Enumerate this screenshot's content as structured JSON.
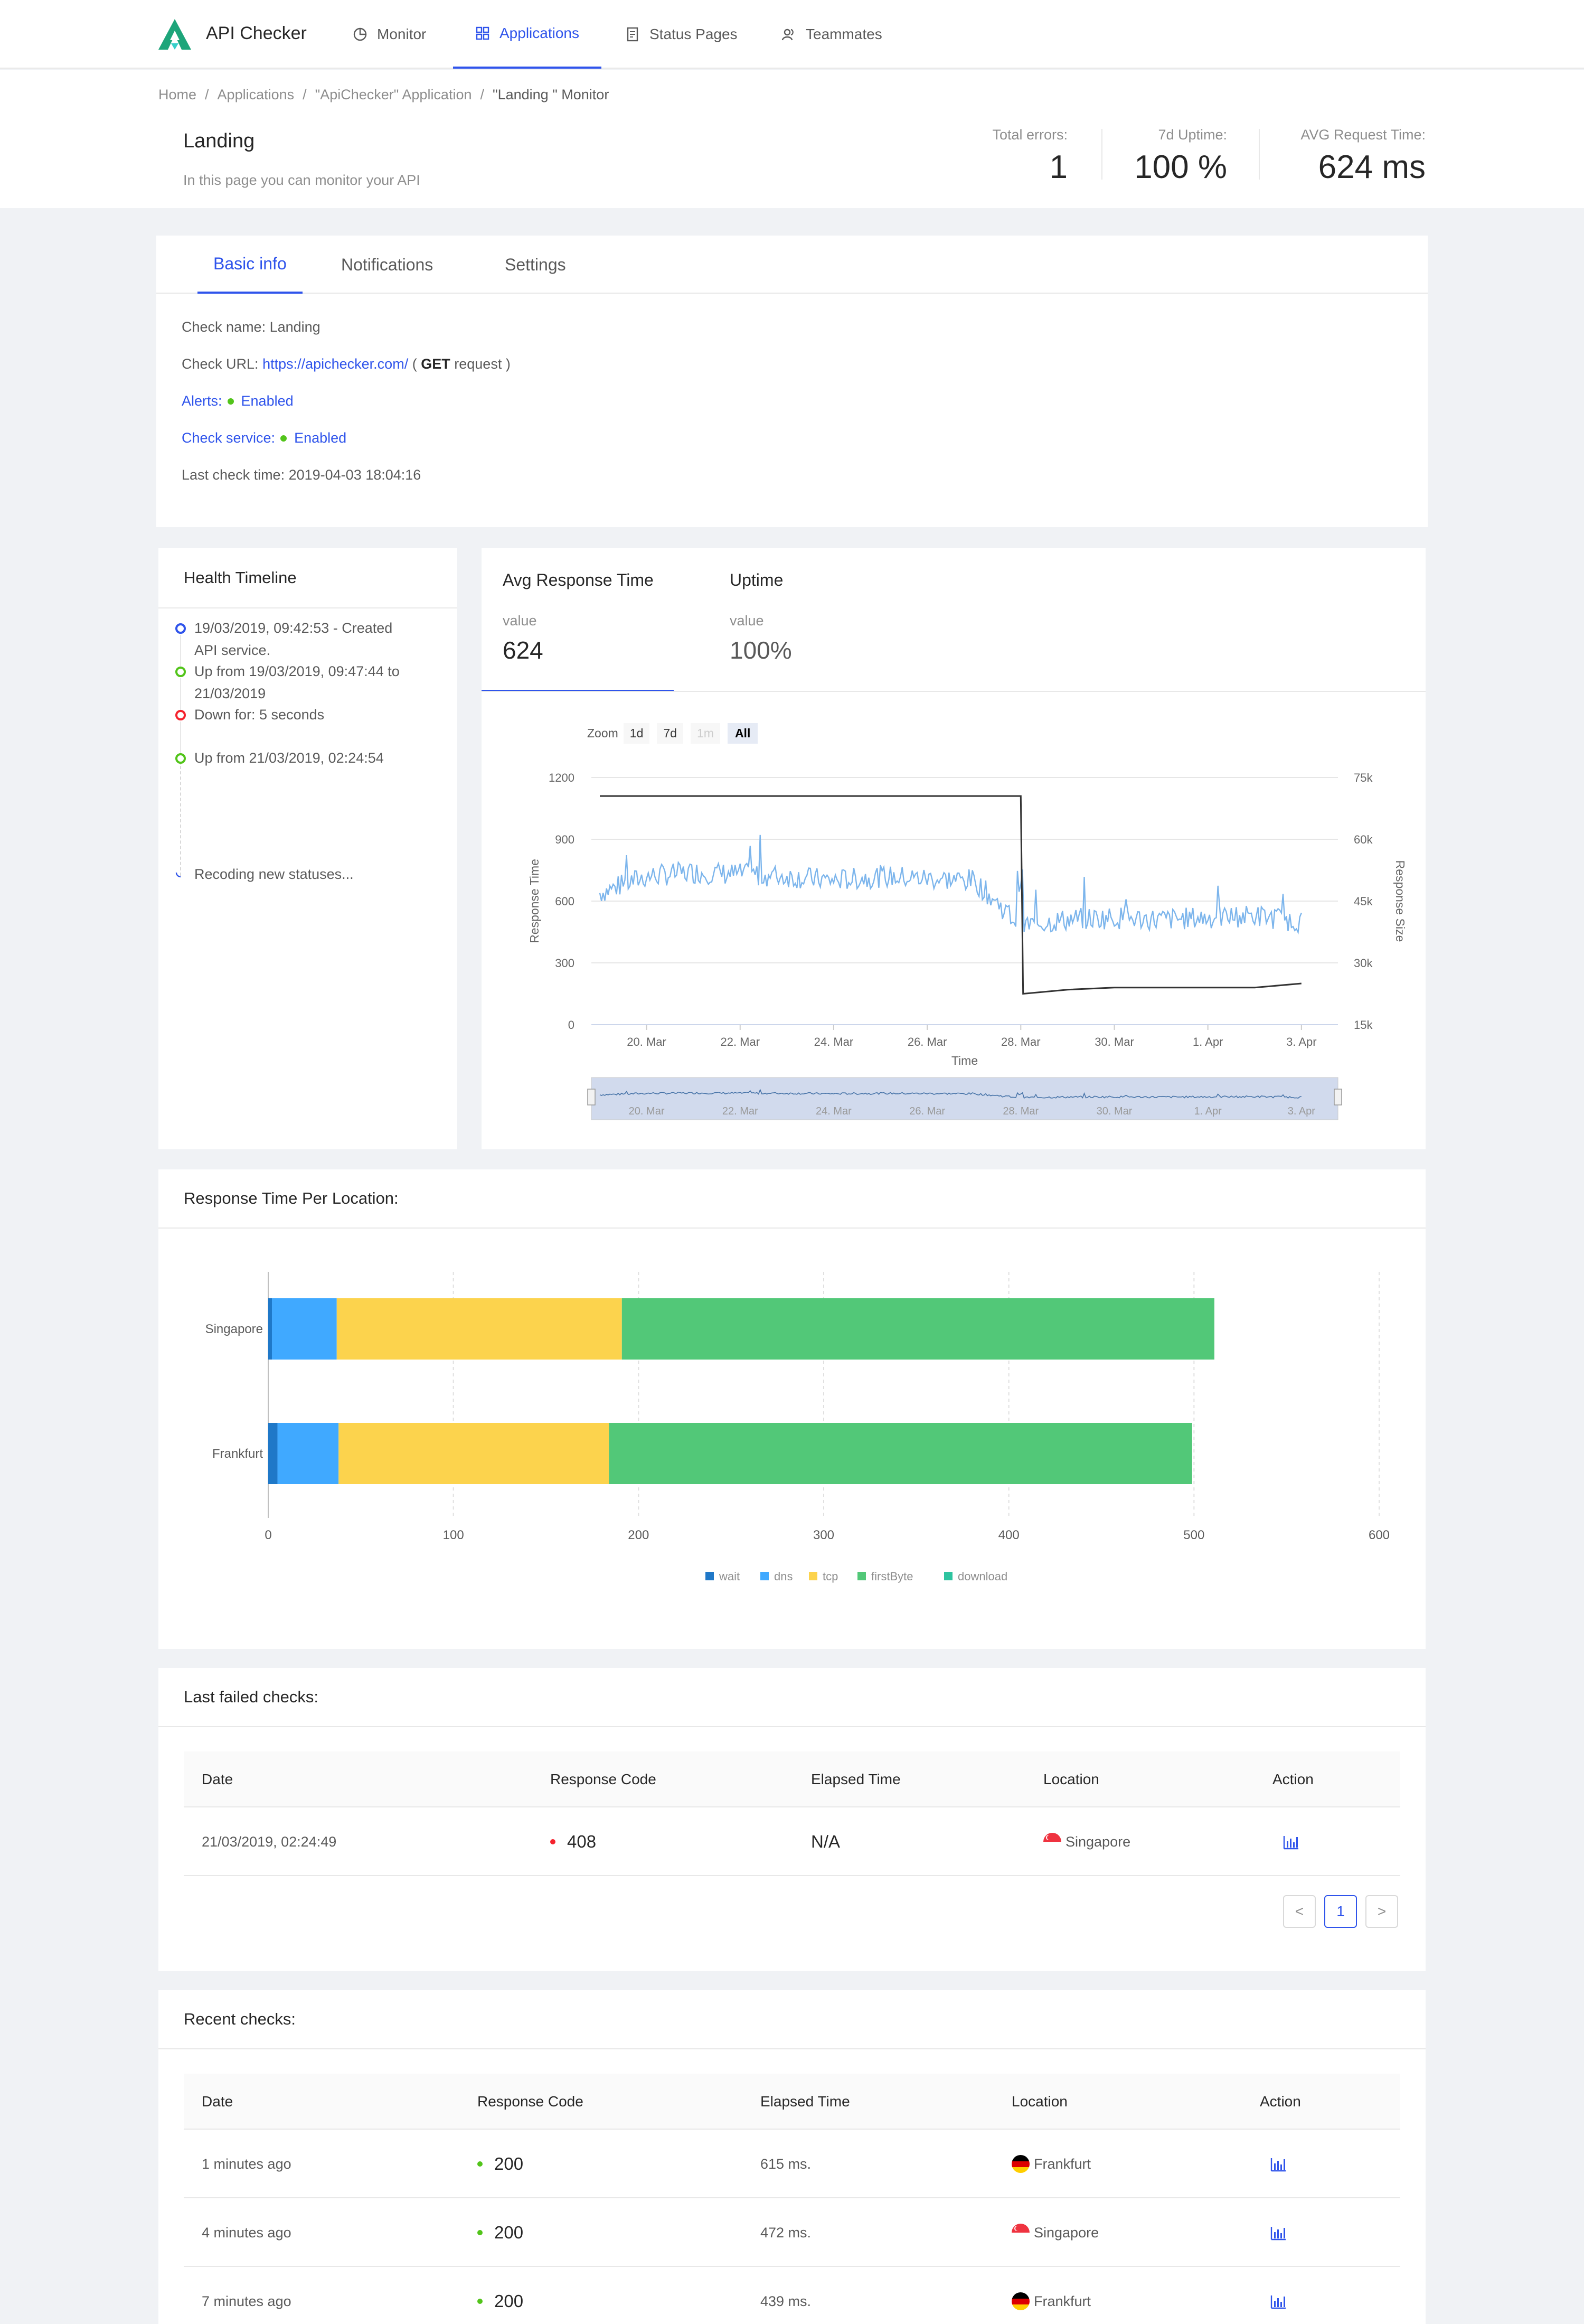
{
  "nav": {
    "brand": "API Checker",
    "items": [
      {
        "label": "Monitor",
        "icon": "pie-chart-icon"
      },
      {
        "label": "Applications",
        "icon": "appstore-icon"
      },
      {
        "label": "Status Pages",
        "icon": "file-text-icon"
      },
      {
        "label": "Teammates",
        "icon": "team-icon"
      }
    ],
    "active": "Applications"
  },
  "breadcrumb": [
    "Home",
    "Applications",
    "\"ApiChecker\" Application",
    "\"Landing \" Monitor"
  ],
  "header": {
    "title": "Landing",
    "description": "In this page you can monitor your API",
    "stats": [
      {
        "label": "Total errors:",
        "value": "1"
      },
      {
        "label": "7d Uptime:",
        "value": "100 %"
      },
      {
        "label": "AVG Request Time:",
        "value": "624 ms"
      }
    ]
  },
  "info": {
    "tabs": [
      "Basic info",
      "Notifications",
      "Settings"
    ],
    "check_name_label": "Check name:",
    "check_name": "Landing",
    "check_url_label": "Check URL:",
    "check_url": "https://apichecker.com/",
    "check_url_open": "(",
    "method": "GET",
    "method_suffix": "request )",
    "alerts_label": "Alerts:",
    "alerts_value": "Enabled",
    "service_label": "Check service:",
    "service_value": "Enabled",
    "last_check_label": "Last check time:",
    "last_check": "2019-04-03 18:04:16"
  },
  "timeline": {
    "title": "Health Timeline",
    "items": [
      {
        "text": "19/03/2019, 09:42:53 - Created API service.",
        "color": "#2f54eb"
      },
      {
        "text": "Up from 19/03/2019, 09:47:44 to 21/03/2019",
        "color": "#52c41a"
      },
      {
        "text": "Down for: 5 seconds",
        "color": "#f5222d"
      },
      {
        "text": "Up from 21/03/2019, 02:24:54",
        "color": "#52c41a"
      }
    ],
    "pending": "Recoding new statuses..."
  },
  "metrics": {
    "tabs": [
      {
        "title": "Avg Response Time",
        "sub": "value",
        "value": "624"
      },
      {
        "title": "Uptime",
        "sub": "value",
        "value": "100%"
      }
    ],
    "zoom_label": "Zoom",
    "zoom_buttons": [
      "1d",
      "7d",
      "1m",
      "All"
    ],
    "zoom_active": "All"
  },
  "location": {
    "title": "Response Time Per Location:"
  },
  "failed": {
    "title": "Last failed checks:",
    "columns": [
      "Date",
      "Response Code",
      "Elapsed Time",
      "Location",
      "Action"
    ],
    "rows": [
      {
        "date": "21/03/2019, 02:24:49",
        "code": "408",
        "elapsed": "N/A",
        "location": "Singapore"
      }
    ],
    "pager": {
      "prev": "<",
      "page": "1",
      "next": ">"
    }
  },
  "recent": {
    "title": "Recent checks:",
    "columns": [
      "Date",
      "Response Code",
      "Elapsed Time",
      "Location",
      "Action"
    ],
    "rows": [
      {
        "date": "1 minutes ago",
        "code": "200",
        "elapsed": "615 ms.",
        "location": "Frankfurt"
      },
      {
        "date": "4 minutes ago",
        "code": "200",
        "elapsed": "472 ms.",
        "location": "Singapore"
      },
      {
        "date": "7 minutes ago",
        "code": "200",
        "elapsed": "439 ms.",
        "location": "Frankfurt"
      }
    ]
  },
  "colors": {
    "primary": "#2f54eb",
    "success": "#52c41a",
    "error": "#f5222d",
    "wait": "#1f78c8",
    "dns": "#40a9ff",
    "tcp": "#fcd34d",
    "firstByte": "#52c878",
    "download": "#2ec4a0"
  },
  "chart_data": [
    {
      "type": "line",
      "title": "",
      "xlabel": "Time",
      "ylabel": "Response Time",
      "ylabel_right": "Response Size",
      "x_ticks": [
        "20. Mar",
        "22. Mar",
        "24. Mar",
        "26. Mar",
        "28. Mar",
        "30. Mar",
        "1. Apr",
        "3. Apr"
      ],
      "ylim": [
        0,
        1200
      ],
      "y_ticks": [
        0,
        300,
        600,
        900,
        1200
      ],
      "ylim_right": [
        15000,
        75000
      ],
      "y_ticks_right": [
        "15k",
        "30k",
        "45k",
        "60k",
        "75k"
      ],
      "series": [
        {
          "name": "Response Time",
          "axis": "left",
          "x": [
            "19. Mar",
            "20. Mar",
            "21. Mar",
            "22. Mar",
            "23. Mar",
            "24. Mar",
            "25. Mar",
            "26. Mar",
            "27. Mar",
            "28. Mar",
            "29. Mar",
            "30. Mar",
            "31. Mar",
            "1. Apr",
            "2. Apr",
            "3. Apr"
          ],
          "values": [
            640,
            720,
            740,
            730,
            720,
            700,
            720,
            710,
            700,
            480,
            510,
            520,
            510,
            520,
            530,
            500
          ]
        },
        {
          "name": "Response Size",
          "axis": "right",
          "x": [
            "19. Mar",
            "28. Mar",
            "28. Mar",
            "29. Mar",
            "30. Mar",
            "31. Mar",
            "1. Apr",
            "2. Apr",
            "3. Apr"
          ],
          "values": [
            70500,
            70500,
            22500,
            23500,
            24000,
            24000,
            24000,
            24000,
            25000
          ]
        }
      ]
    },
    {
      "type": "bar",
      "orientation": "horizontal",
      "stacked": true,
      "title": "",
      "categories": [
        "Singapore",
        "Frankfurt"
      ],
      "xlim": [
        0,
        600
      ],
      "x_ticks": [
        0,
        100,
        200,
        300,
        400,
        500,
        600
      ],
      "legend_position": "bottom",
      "series": [
        {
          "name": "wait",
          "values": [
            2,
            5
          ]
        },
        {
          "name": "dns",
          "values": [
            35,
            33
          ]
        },
        {
          "name": "tcp",
          "values": [
            154,
            146
          ]
        },
        {
          "name": "firstByte",
          "values": [
            320,
            315
          ]
        },
        {
          "name": "download",
          "values": [
            0,
            0
          ]
        }
      ]
    }
  ]
}
